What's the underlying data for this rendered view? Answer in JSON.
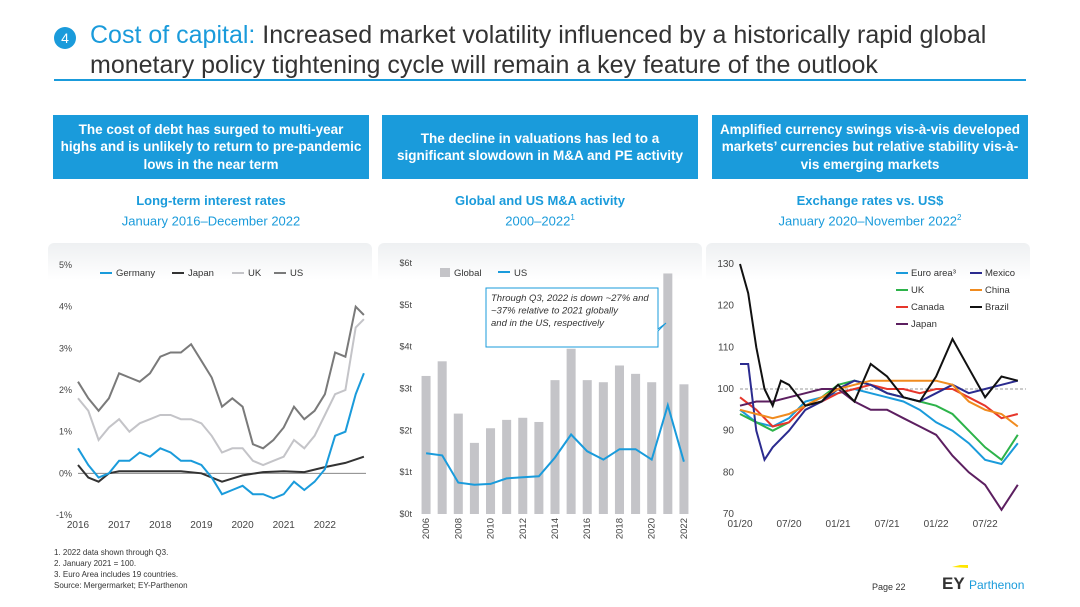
{
  "header": {
    "number": "4",
    "title_accent": "Cost of capital:",
    "title_rest": " Increased market volatility influenced by a historically rapid global monetary policy tightening cycle will remain a key feature of the outlook"
  },
  "panels": [
    {
      "box": "The cost of debt has surged to multi-year highs and is unlikely to return to pre-pandemic lows in the near term",
      "chart_title": "Long-term interest rates",
      "chart_sub": "January 2016–December 2022",
      "chart_sup": ""
    },
    {
      "box": "The decline in valuations has led to a significant slowdown in M&A and PE activity",
      "chart_title": "Global and US M&A activity",
      "chart_sub": "2000–2022",
      "chart_sup": "1"
    },
    {
      "box": "Amplified currency swings vis-à-vis developed markets’ currencies but relative stability vis-à-vis emerging markets",
      "chart_title": "Exchange rates vs. US$",
      "chart_sub": "January 2020–November 2022",
      "chart_sup": "2"
    }
  ],
  "colors": {
    "accent": "#1a9bdb",
    "germany": "#1a9bdb",
    "japan": "#333333",
    "uk": "#c4c4c8",
    "us": "#7a7a7a",
    "bar": "#c4c4c8",
    "euro": "#1a9bdb",
    "uk_fx": "#2db34a",
    "canada": "#e6362b",
    "japan_fx": "#5c1f60",
    "mexico": "#2b2b8f",
    "china": "#f08b1f",
    "brazil": "#111111"
  },
  "chart_data": [
    {
      "type": "line",
      "title": "Long-term interest rates",
      "subtitle": "January 2016–December 2022",
      "x_ticks": [
        "2016",
        "2017",
        "2018",
        "2019",
        "2020",
        "2021",
        "2022"
      ],
      "y_ticks": [
        "-1%",
        "0%",
        "1%",
        "2%",
        "3%",
        "4%",
        "5%"
      ],
      "ylim": [
        -1,
        5
      ],
      "xlim": [
        2016,
        2023
      ],
      "series": [
        {
          "name": "Germany",
          "x": [
            2016.0,
            2016.25,
            2016.5,
            2016.75,
            2017.0,
            2017.25,
            2017.5,
            2017.75,
            2018.0,
            2018.25,
            2018.5,
            2018.75,
            2019.0,
            2019.25,
            2019.5,
            2019.75,
            2020.0,
            2020.25,
            2020.5,
            2020.75,
            2021.0,
            2021.25,
            2021.5,
            2021.75,
            2022.0,
            2022.25,
            2022.5,
            2022.75,
            2022.95
          ],
          "y": [
            0.6,
            0.2,
            -0.1,
            0.0,
            0.3,
            0.3,
            0.5,
            0.4,
            0.6,
            0.5,
            0.3,
            0.3,
            0.2,
            -0.1,
            -0.5,
            -0.4,
            -0.3,
            -0.5,
            -0.5,
            -0.6,
            -0.5,
            -0.2,
            -0.4,
            -0.2,
            0.1,
            0.9,
            1.0,
            1.9,
            2.4
          ]
        },
        {
          "name": "Japan",
          "x": [
            2016.0,
            2016.25,
            2016.5,
            2016.75,
            2017.0,
            2017.5,
            2018.0,
            2018.5,
            2019.0,
            2019.5,
            2020.0,
            2020.5,
            2021.0,
            2021.5,
            2022.0,
            2022.5,
            2022.95
          ],
          "y": [
            0.2,
            -0.1,
            -0.2,
            0.0,
            0.05,
            0.05,
            0.05,
            0.05,
            0.0,
            -0.2,
            -0.05,
            0.03,
            0.05,
            0.03,
            0.15,
            0.25,
            0.4
          ]
        },
        {
          "name": "UK",
          "x": [
            2016.0,
            2016.25,
            2016.5,
            2016.75,
            2017.0,
            2017.25,
            2017.5,
            2017.75,
            2018.0,
            2018.25,
            2018.5,
            2018.75,
            2019.0,
            2019.25,
            2019.5,
            2019.75,
            2020.0,
            2020.25,
            2020.5,
            2020.75,
            2021.0,
            2021.25,
            2021.5,
            2021.75,
            2022.0,
            2022.25,
            2022.5,
            2022.75,
            2022.95
          ],
          "y": [
            1.8,
            1.5,
            0.8,
            1.1,
            1.3,
            1.0,
            1.2,
            1.3,
            1.4,
            1.4,
            1.3,
            1.3,
            1.2,
            0.9,
            0.5,
            0.6,
            0.6,
            0.3,
            0.2,
            0.3,
            0.4,
            0.8,
            0.6,
            0.9,
            1.4,
            1.9,
            2.0,
            3.5,
            3.7
          ]
        },
        {
          "name": "US",
          "x": [
            2016.0,
            2016.25,
            2016.5,
            2016.75,
            2017.0,
            2017.25,
            2017.5,
            2017.75,
            2018.0,
            2018.25,
            2018.5,
            2018.75,
            2019.0,
            2019.25,
            2019.5,
            2019.75,
            2020.0,
            2020.25,
            2020.5,
            2020.75,
            2021.0,
            2021.25,
            2021.5,
            2021.75,
            2022.0,
            2022.25,
            2022.5,
            2022.75,
            2022.95
          ],
          "y": [
            2.2,
            1.8,
            1.5,
            1.8,
            2.4,
            2.3,
            2.2,
            2.4,
            2.8,
            2.9,
            2.9,
            3.1,
            2.7,
            2.3,
            1.6,
            1.8,
            1.6,
            0.7,
            0.6,
            0.8,
            1.1,
            1.6,
            1.3,
            1.5,
            1.9,
            2.9,
            2.8,
            4.0,
            3.8
          ]
        }
      ]
    },
    {
      "type": "bar",
      "title": "Global and US M&A activity",
      "subtitle": "2000–2022",
      "categories": [
        "2006",
        "2007",
        "2008",
        "2009",
        "2010",
        "2011",
        "2012",
        "2013",
        "2014",
        "2015",
        "2016",
        "2017",
        "2018",
        "2019",
        "2020",
        "2021",
        "2022"
      ],
      "x_tick_labels": [
        "2006",
        "2008",
        "2010",
        "2012",
        "2014",
        "2016",
        "2018",
        "2020",
        "2022"
      ],
      "y_ticks": [
        "$0t",
        "$1t",
        "$2t",
        "$3t",
        "$4t",
        "$5t",
        "$6t"
      ],
      "ylim": [
        0,
        6
      ],
      "series": [
        {
          "name": "Global",
          "values": [
            3.3,
            3.65,
            2.4,
            1.7,
            2.05,
            2.25,
            2.3,
            2.2,
            3.2,
            3.95,
            3.2,
            3.15,
            3.55,
            3.35,
            3.15,
            5.75,
            3.1
          ]
        },
        {
          "name": "US",
          "values": [
            1.45,
            1.4,
            0.75,
            0.7,
            0.72,
            0.85,
            0.88,
            0.9,
            1.35,
            1.9,
            1.5,
            1.3,
            1.55,
            1.55,
            1.3,
            2.6,
            1.25
          ]
        }
      ],
      "annotation": "Through Q3, 2022 is down ~27% and ~37% relative to 2021 globally and in the US, respectively"
    },
    {
      "type": "line",
      "title": "Exchange rates vs. US$",
      "subtitle": "January 2020–November 2022",
      "x_ticks": [
        "01/20",
        "07/20",
        "01/21",
        "07/21",
        "01/22",
        "07/22"
      ],
      "y_ticks": [
        "70",
        "80",
        "90",
        "100",
        "110",
        "120",
        "130"
      ],
      "ylim": [
        70,
        130
      ],
      "xlim": [
        0,
        35
      ],
      "series": [
        {
          "name": "Euro area³",
          "x": [
            0,
            2,
            4,
            6,
            8,
            10,
            12,
            14,
            16,
            18,
            20,
            22,
            24,
            26,
            28,
            30,
            32,
            34
          ],
          "y": [
            95,
            92,
            91,
            93,
            97,
            98,
            99,
            100,
            99,
            98,
            97,
            95,
            92,
            90,
            87,
            83,
            82,
            87
          ]
        },
        {
          "name": "UK",
          "x": [
            0,
            2,
            4,
            6,
            8,
            10,
            12,
            14,
            16,
            18,
            20,
            22,
            24,
            26,
            28,
            30,
            32,
            34
          ],
          "y": [
            94,
            92,
            90,
            92,
            96,
            98,
            101,
            102,
            101,
            99,
            98,
            97,
            96,
            94,
            90,
            86,
            83,
            89
          ]
        },
        {
          "name": "Canada",
          "x": [
            0,
            2,
            4,
            6,
            8,
            10,
            12,
            14,
            16,
            18,
            20,
            22,
            24,
            26,
            28,
            30,
            32,
            34
          ],
          "y": [
            98,
            95,
            91,
            92,
            96,
            97,
            99,
            100,
            101,
            100,
            100,
            99,
            100,
            100,
            98,
            96,
            93,
            94
          ]
        },
        {
          "name": "Japan",
          "x": [
            0,
            2,
            4,
            6,
            8,
            10,
            12,
            14,
            16,
            18,
            20,
            22,
            24,
            26,
            28,
            30,
            32,
            34
          ],
          "y": [
            96,
            97,
            97,
            98,
            99,
            100,
            100,
            97,
            95,
            95,
            93,
            91,
            89,
            84,
            80,
            77,
            71,
            77
          ]
        },
        {
          "name": "Mexico",
          "x": [
            0,
            1,
            2,
            3,
            4,
            6,
            8,
            10,
            12,
            14,
            16,
            18,
            20,
            22,
            24,
            26,
            28,
            30,
            32,
            34
          ],
          "y": [
            106,
            106,
            90,
            83,
            86,
            90,
            95,
            97,
            100,
            102,
            101,
            99,
            98,
            97,
            99,
            101,
            99,
            100,
            101,
            102
          ]
        },
        {
          "name": "China",
          "x": [
            0,
            2,
            4,
            6,
            8,
            10,
            12,
            14,
            16,
            18,
            20,
            22,
            24,
            26,
            28,
            30,
            32,
            34
          ],
          "y": [
            95,
            94,
            93,
            94,
            96,
            98,
            100,
            101,
            102,
            102,
            102,
            102,
            102,
            101,
            97,
            95,
            94,
            91
          ]
        },
        {
          "name": "Brazil",
          "x": [
            0,
            1,
            2,
            3,
            4,
            5,
            6,
            8,
            10,
            12,
            14,
            16,
            18,
            20,
            22,
            24,
            26,
            28,
            30,
            32,
            34
          ],
          "y": [
            130,
            123,
            110,
            100,
            96,
            102,
            101,
            96,
            97,
            101,
            97,
            106,
            103,
            98,
            97,
            103,
            112,
            105,
            98,
            103,
            102
          ]
        }
      ]
    }
  ],
  "footnotes": [
    "1. 2022 data shown through Q3.",
    "2. January 2021 = 100.",
    "3. Euro Area includes 19 countries.",
    "Source: Mergermarket; EY-Parthenon"
  ],
  "page": "Page 22",
  "logo": {
    "ey": "EY",
    "brand": "Parthenon"
  }
}
